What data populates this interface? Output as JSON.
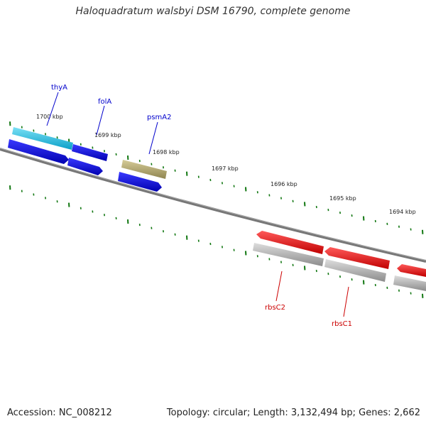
{
  "title": "Haloquadratum walsbyi DSM 16790, complete genome",
  "footer": {
    "accession": "Accession: NC_008212",
    "stats": "Topology: circular; Length: 3,132,494 bp; Genes: 2,662"
  },
  "ruler_labels": [
    "1700 kbp",
    "1699 kbp",
    "1698 kbp",
    "1697 kbp",
    "1696 kbp",
    "1695 kbp",
    "1694 kbp"
  ],
  "genes": {
    "forward_strand": [
      {
        "label": "thyA",
        "color": "#0000cc"
      },
      {
        "label": "folA",
        "color": "#0000cc"
      },
      {
        "label": "psmA2",
        "color": "#0000cc"
      }
    ],
    "reverse_strand": [
      {
        "label": "rbsC2",
        "color": "#cc0000"
      },
      {
        "label": "rbsC1",
        "color": "#cc0000"
      }
    ]
  },
  "colors": {
    "backbone": "#777777",
    "tick": "#117711",
    "gene_blue": "#0a10d8",
    "gene_cyan": "#1ab8dc",
    "gene_tan": "#b7ac72",
    "gene_red": "#e80c0c",
    "gene_gray": "#a8a8a8"
  }
}
